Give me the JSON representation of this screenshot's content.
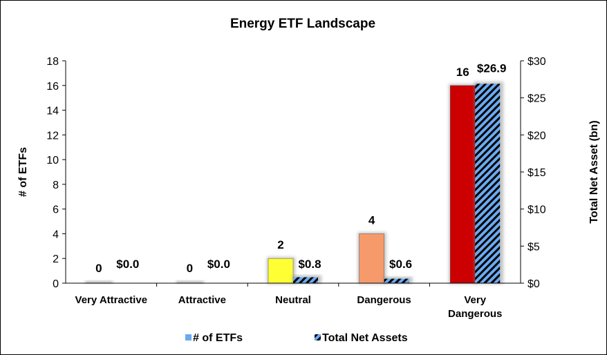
{
  "chart_data": {
    "type": "bar",
    "title": "Energy ETF Landscape",
    "categories": [
      "Very Attractive",
      "Attractive",
      "Neutral",
      "Dangerous",
      "Very Dangerous"
    ],
    "series": [
      {
        "name": "# of ETFs",
        "axis": "left",
        "values": [
          0,
          0,
          2,
          4,
          16
        ],
        "labels": [
          "0",
          "0",
          "2",
          "4",
          "16"
        ],
        "colors": [
          "#c8c8c8",
          "#c8c8c8",
          "#ffff33",
          "#f79a6b",
          "#cc0000"
        ]
      },
      {
        "name": "Total Net Assets",
        "axis": "right",
        "values": [
          0.0,
          0.0,
          0.8,
          0.6,
          26.9
        ],
        "labels": [
          "$0.0",
          "$0.0",
          "$0.8",
          "$0.6",
          "$26.9"
        ],
        "colors": [
          "#6aaaf0",
          "#000000"
        ],
        "pattern": "diagonal-stripes"
      }
    ],
    "ylabel": "# of ETFs",
    "ylim": [
      0,
      18
    ],
    "yticks": [
      "0",
      "2",
      "4",
      "6",
      "8",
      "10",
      "12",
      "14",
      "16",
      "18"
    ],
    "y2label": "Total Net Asset (bn)",
    "y2lim": [
      0,
      30
    ],
    "y2ticks": [
      "$0",
      "$5",
      "$10",
      "$15",
      "$20",
      "$25",
      "$30"
    ],
    "legend_position": "bottom",
    "grid": false
  }
}
